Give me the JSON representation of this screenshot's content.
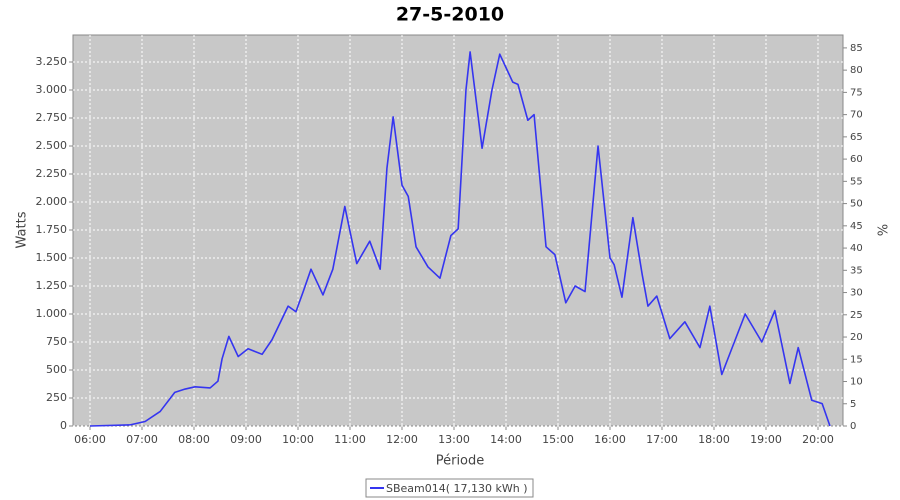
{
  "chart_data": {
    "type": "line",
    "title": "27-5-2010",
    "x_label": "Période",
    "y_label": "Watts",
    "y2_label": "%",
    "xlim": [
      5.673,
      20.481
    ],
    "xticks": [
      {
        "value": 6,
        "label": "06:00"
      },
      {
        "value": 7,
        "label": "07:00"
      },
      {
        "value": 8,
        "label": "08:00"
      },
      {
        "value": 9,
        "label": "09:00"
      },
      {
        "value": 10,
        "label": "10:00"
      },
      {
        "value": 11,
        "label": "11:00"
      },
      {
        "value": 12,
        "label": "12:00"
      },
      {
        "value": 13,
        "label": "13:00"
      },
      {
        "value": 14,
        "label": "14:00"
      },
      {
        "value": 15,
        "label": "15:00"
      },
      {
        "value": 16,
        "label": "16:00"
      },
      {
        "value": 17,
        "label": "17:00"
      },
      {
        "value": 18,
        "label": "18:00"
      },
      {
        "value": 19,
        "label": "19:00"
      },
      {
        "value": 20,
        "label": "20:00"
      }
    ],
    "ylim": [
      0,
      3491
    ],
    "yticks": [
      0,
      250,
      500,
      750,
      {
        "value": 1000,
        "label": "1.000"
      },
      {
        "value": 1250,
        "label": "1.250"
      },
      {
        "value": 1500,
        "label": "1.500"
      },
      {
        "value": 1750,
        "label": "1.750"
      },
      {
        "value": 2000,
        "label": "2.000"
      },
      {
        "value": 2250,
        "label": "2.250"
      },
      {
        "value": 2500,
        "label": "2.500"
      },
      {
        "value": 2750,
        "label": "2.750"
      },
      {
        "value": 3000,
        "label": "3.000"
      },
      {
        "value": 3250,
        "label": "3.250"
      }
    ],
    "y2lim": [
      0,
      87.9
    ],
    "y2ticks": [
      0,
      5,
      10,
      15,
      20,
      25,
      30,
      35,
      40,
      45,
      50,
      55,
      60,
      65,
      70,
      75,
      80,
      85
    ],
    "grid": true,
    "background": "#c8c8c8",
    "legend": "bottom",
    "x": [
      6.0,
      6.77,
      7.06,
      7.35,
      7.63,
      7.83,
      8.02,
      8.31,
      8.46,
      8.54,
      8.67,
      8.85,
      9.04,
      9.31,
      9.5,
      9.81,
      9.96,
      10.1,
      10.25,
      10.48,
      10.67,
      10.9,
      11.13,
      11.38,
      11.58,
      11.71,
      11.83,
      12.0,
      12.12,
      12.27,
      12.5,
      12.73,
      12.94,
      13.08,
      13.23,
      13.31,
      13.54,
      13.73,
      13.88,
      14.13,
      14.23,
      14.42,
      14.54,
      14.77,
      14.94,
      15.15,
      15.33,
      15.52,
      15.77,
      16.0,
      16.08,
      16.23,
      16.44,
      16.62,
      16.73,
      16.9,
      17.15,
      17.44,
      17.73,
      17.92,
      18.15,
      18.6,
      18.92,
      19.17,
      19.46,
      19.62,
      19.88,
      20.08,
      20.23
    ],
    "series": [
      {
        "name": "SBeam014( 17,130 kWh )",
        "color": "#3535f0",
        "values": [
          0,
          10,
          40,
          130,
          300,
          330,
          350,
          340,
          400,
          600,
          800,
          620,
          690,
          640,
          770,
          1070,
          1020,
          1200,
          1400,
          1170,
          1400,
          1960,
          1450,
          1650,
          1400,
          2300,
          2760,
          2150,
          2050,
          1600,
          1420,
          1320,
          1700,
          1760,
          3000,
          3340,
          2480,
          3000,
          3320,
          3070,
          3050,
          2730,
          2780,
          1600,
          1530,
          1100,
          1250,
          1200,
          2500,
          1500,
          1440,
          1150,
          1860,
          1350,
          1070,
          1160,
          780,
          930,
          700,
          1070,
          460,
          1000,
          750,
          1030,
          380,
          700,
          230,
          200,
          0
        ]
      }
    ]
  }
}
